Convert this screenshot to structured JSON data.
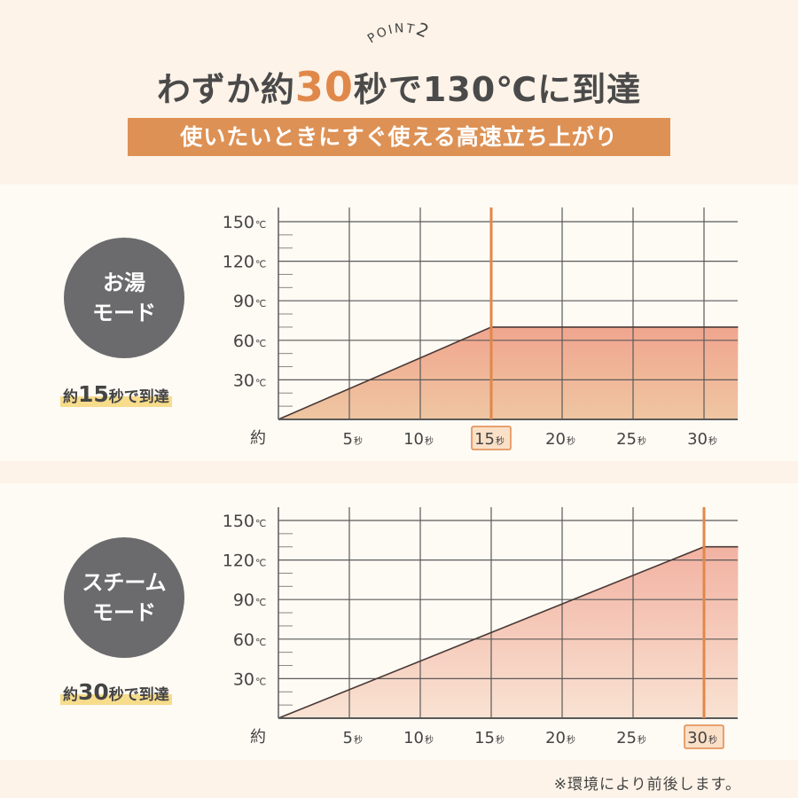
{
  "header": {
    "point_label": "POINT",
    "point_number": "2",
    "title_pre": "わずか約",
    "title_highlight": "30",
    "title_post": "秒で130℃に到達",
    "banner": "使いたいときにすぐ使える高速立ち上がり"
  },
  "modes": [
    {
      "name_line1": "お湯",
      "name_line2": "モード",
      "reach_pre": "約",
      "reach_num": "15",
      "reach_post": "秒で到達"
    },
    {
      "name_line1": "スチーム",
      "name_line2": "モード",
      "reach_pre": "約",
      "reach_num": "30",
      "reach_post": "秒で到達"
    }
  ],
  "colors": {
    "accent": "#e0884a",
    "banner": "#dd9155",
    "circle": "#6b6b6d",
    "grid": "#555555",
    "highlight": "#f7dc8c"
  },
  "chart_data": [
    {
      "type": "area",
      "x_prefix": "約",
      "x_unit": "秒",
      "y_unit": "℃",
      "x_ticks": [
        5,
        10,
        15,
        20,
        25,
        30
      ],
      "y_ticks": [
        30,
        60,
        90,
        120,
        150
      ],
      "xlim": [
        0,
        32.4
      ],
      "ylim": [
        0,
        150
      ],
      "grid": true,
      "points": [
        [
          0,
          0
        ],
        [
          15,
          70
        ],
        [
          32.4,
          70
        ]
      ],
      "marker_x": 15
    },
    {
      "type": "area",
      "x_prefix": "約",
      "x_unit": "秒",
      "y_unit": "℃",
      "x_ticks": [
        5,
        10,
        15,
        20,
        25,
        30
      ],
      "y_ticks": [
        30,
        60,
        90,
        120,
        150
      ],
      "xlim": [
        0,
        32.4
      ],
      "ylim": [
        0,
        150
      ],
      "grid": true,
      "points": [
        [
          0,
          0
        ],
        [
          30,
          130
        ],
        [
          32.4,
          130
        ]
      ],
      "marker_x": 30
    }
  ],
  "footnote": "※環境により前後します。"
}
